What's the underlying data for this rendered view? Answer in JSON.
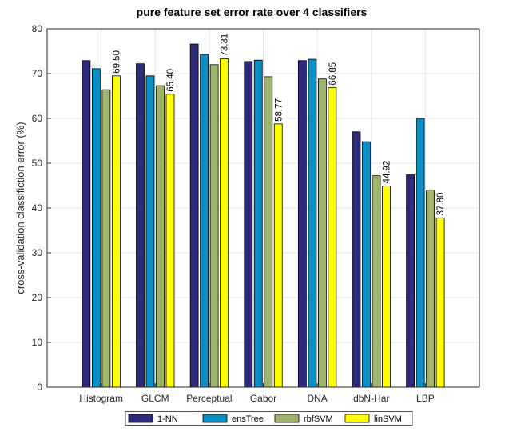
{
  "chart_data": {
    "type": "bar",
    "title": "pure feature set error rate over 4 classifiers",
    "xlabel": "",
    "ylabel": "cross-validation classifiction error (%)",
    "ylim": [
      0,
      80
    ],
    "yticks": [
      0,
      10,
      20,
      30,
      40,
      50,
      60,
      70,
      80
    ],
    "grid": "on",
    "legend_position": "bottom",
    "categories": [
      "Histogram",
      "GLCM",
      "Perceptual",
      "Gabor",
      "DNA",
      "dbN-Har",
      "LBP"
    ],
    "series": [
      {
        "name": "1-NN",
        "color": "#2e2a7a",
        "values": [
          72.9,
          72.2,
          76.6,
          72.7,
          72.9,
          57.0,
          47.4
        ]
      },
      {
        "name": "ensTree",
        "color": "#0b8ec4",
        "values": [
          71.1,
          69.5,
          74.3,
          73.0,
          73.2,
          54.8,
          60.0
        ]
      },
      {
        "name": "rbfSVM",
        "color": "#9fb56b",
        "values": [
          66.4,
          67.3,
          72.0,
          69.3,
          68.8,
          47.2,
          44.0
        ]
      },
      {
        "name": "linSVM",
        "color": "#ffff00",
        "values": [
          69.5,
          65.4,
          73.31,
          58.77,
          66.85,
          44.92,
          37.8
        ]
      }
    ],
    "data_labels": {
      "series": "linSVM",
      "labels": [
        "69.50",
        "65.40",
        "73.31",
        "58.77",
        "66.85",
        "44.92",
        "37.80"
      ]
    }
  }
}
